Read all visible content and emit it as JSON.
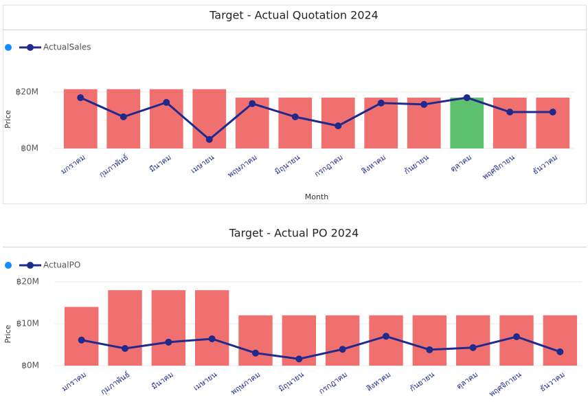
{
  "chart_data": [
    {
      "type": "bar-line",
      "title": "Target - Actual Quotation 2024",
      "ylabel": "Price",
      "xlabel": "Month",
      "categories": [
        "มกราคม",
        "กุมภาพันธ์",
        "มีนาคม",
        "เมษายน",
        "พฤษภาคม",
        "มิถุนายน",
        "กรกฎาคม",
        "สิงหาคม",
        "กันยายน",
        "ตุลาคม",
        "พฤศจิกายน",
        "ธันวาคม"
      ],
      "series": [
        {
          "type": "bar",
          "legend_color": "#118dff",
          "colors": [
            "#f07070",
            "#f07070",
            "#f07070",
            "#f07070",
            "#f07070",
            "#f07070",
            "#f07070",
            "#f07070",
            "#f07070",
            "#5cc06e",
            "#f07070",
            "#f07070"
          ],
          "values": [
            21000000,
            21000000,
            21000000,
            21000000,
            18000000,
            18000000,
            18000000,
            18000000,
            18000000,
            18000000,
            18000000,
            18000000
          ]
        },
        {
          "type": "line",
          "name": "ActualSales",
          "color": "#1f2a8c",
          "values": [
            18000000,
            11200000,
            16300000,
            3200000,
            15900000,
            11200000,
            8000000,
            16100000,
            15600000,
            18000000,
            12900000,
            12900000
          ]
        }
      ],
      "ylim": [
        0,
        28000000
      ],
      "yticks": [
        {
          "value": 0,
          "label": "฿0M"
        },
        {
          "value": 20000000,
          "label": "฿20M"
        }
      ],
      "grid": true
    },
    {
      "type": "bar-line",
      "title": "Target - Actual PO 2024",
      "ylabel": "Price",
      "categories": [
        "มกราคม",
        "กุมภาพันธ์",
        "มีนาคม",
        "เมษายน",
        "พฤษภาคม",
        "มิถุนายน",
        "กรกฎาคม",
        "สิงหาคม",
        "กันยายน",
        "ตุลาคม",
        "พฤศจิกายน",
        "ธันวาคม"
      ],
      "series": [
        {
          "type": "bar",
          "legend_color": "#118dff",
          "colors": [
            "#f07070",
            "#f07070",
            "#f07070",
            "#f07070",
            "#f07070",
            "#f07070",
            "#f07070",
            "#f07070",
            "#f07070",
            "#f07070",
            "#f07070",
            "#f07070"
          ],
          "values": [
            14000000,
            18000000,
            18000000,
            18000000,
            12000000,
            12000000,
            12000000,
            12000000,
            12000000,
            12000000,
            12000000,
            12000000
          ]
        },
        {
          "type": "line",
          "name": "ActualPO",
          "color": "#1f2a8c",
          "values": [
            6100000,
            4100000,
            5600000,
            6400000,
            3000000,
            1600000,
            3900000,
            7000000,
            3800000,
            4300000,
            6900000,
            3300000
          ]
        }
      ],
      "ylim": [
        0,
        20000000
      ],
      "yticks": [
        {
          "value": 0,
          "label": "฿0M"
        },
        {
          "value": 10000000,
          "label": "฿10M"
        },
        {
          "value": 20000000,
          "label": "฿20M"
        }
      ],
      "grid": true
    }
  ]
}
